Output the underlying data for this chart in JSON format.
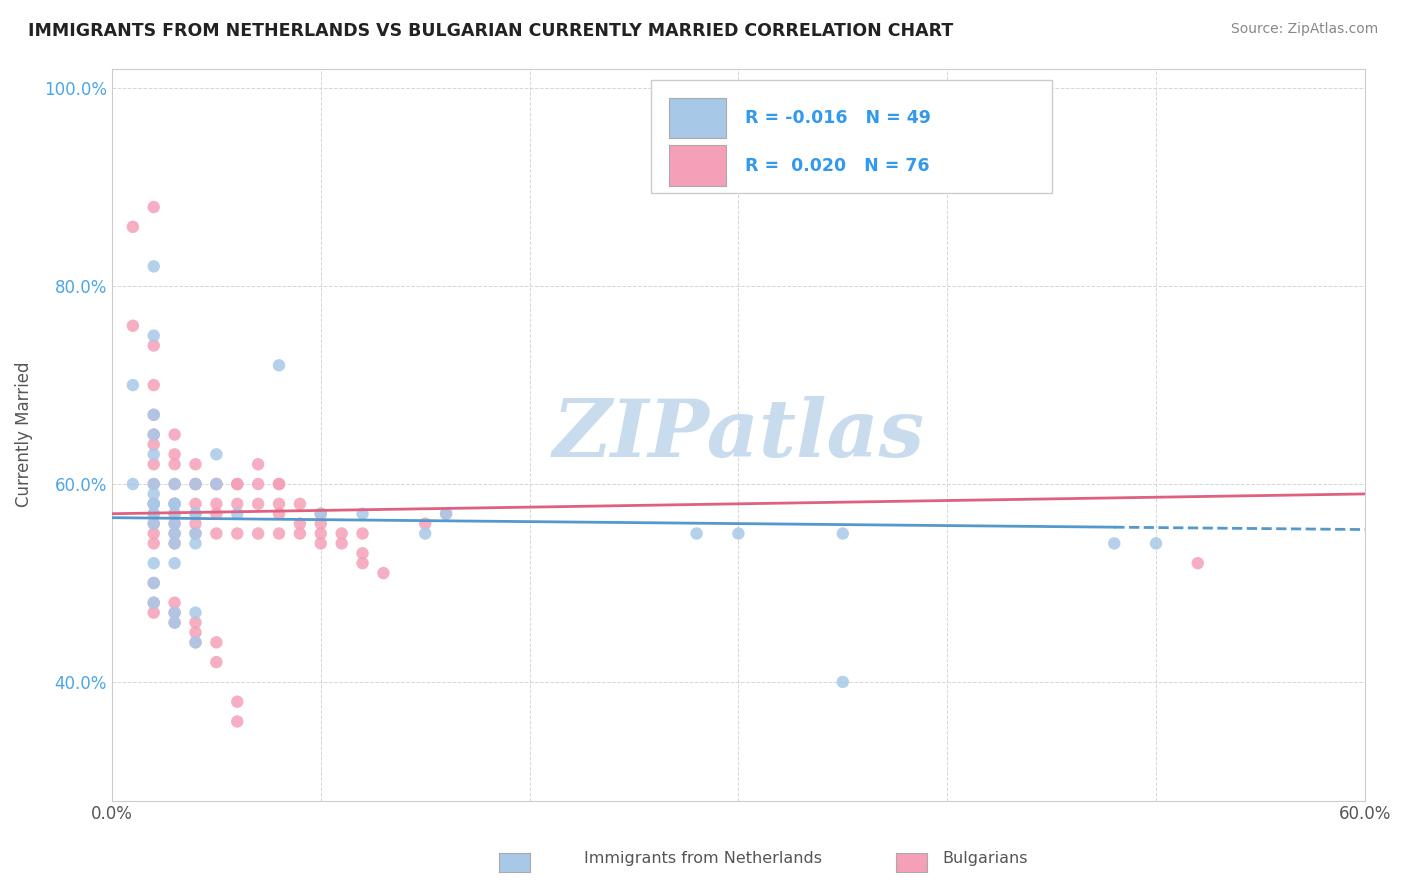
{
  "title": "IMMIGRANTS FROM NETHERLANDS VS BULGARIAN CURRENTLY MARRIED CORRELATION CHART",
  "source": "Source: ZipAtlas.com",
  "ylabel": "Currently Married",
  "x_min": 0.0,
  "x_max": 0.6,
  "y_min": 0.28,
  "y_max": 1.02,
  "x_ticks": [
    0.0,
    0.1,
    0.2,
    0.3,
    0.4,
    0.5,
    0.6
  ],
  "y_ticks": [
    0.4,
    0.6,
    0.8,
    1.0
  ],
  "netherlands_color": "#a8c8e8",
  "bulgarians_color": "#f4a0b8",
  "netherlands_line_color": "#5599cc",
  "bulgarians_line_color": "#e06080",
  "R_netherlands": -0.016,
  "N_netherlands": 49,
  "R_bulgarians": 0.02,
  "N_bulgarians": 76,
  "watermark": "ZIPatlas",
  "watermark_color": "#c8dced",
  "background_color": "#ffffff",
  "grid_color": "#cccccc",
  "title_color": "#222222",
  "tick_color": "#4da6e8",
  "legend_label_netherlands": "Immigrants from Netherlands",
  "legend_label_bulgarians": "Bulgarians",
  "netherlands_scatter_x": [
    0.02,
    0.02,
    0.01,
    0.02,
    0.02,
    0.02,
    0.01,
    0.02,
    0.02,
    0.02,
    0.03,
    0.02,
    0.03,
    0.03,
    0.03,
    0.04,
    0.04,
    0.05,
    0.05,
    0.06,
    0.08,
    0.02,
    0.02,
    0.02,
    0.03,
    0.03,
    0.03,
    0.03,
    0.04,
    0.04,
    0.04,
    0.03,
    0.1,
    0.12,
    0.15,
    0.16,
    0.02,
    0.02,
    0.02,
    0.03,
    0.03,
    0.04,
    0.04,
    0.28,
    0.3,
    0.35,
    0.35,
    0.48,
    0.5
  ],
  "netherlands_scatter_y": [
    0.82,
    0.75,
    0.7,
    0.67,
    0.65,
    0.63,
    0.6,
    0.6,
    0.59,
    0.58,
    0.6,
    0.58,
    0.58,
    0.57,
    0.58,
    0.6,
    0.57,
    0.63,
    0.6,
    0.57,
    0.72,
    0.57,
    0.57,
    0.56,
    0.58,
    0.56,
    0.55,
    0.54,
    0.57,
    0.55,
    0.54,
    0.52,
    0.57,
    0.57,
    0.55,
    0.57,
    0.52,
    0.5,
    0.48,
    0.47,
    0.46,
    0.47,
    0.44,
    0.55,
    0.55,
    0.55,
    0.4,
    0.54,
    0.54
  ],
  "bulgarians_scatter_x": [
    0.01,
    0.01,
    0.02,
    0.02,
    0.02,
    0.02,
    0.02,
    0.02,
    0.02,
    0.02,
    0.02,
    0.02,
    0.02,
    0.02,
    0.03,
    0.03,
    0.03,
    0.03,
    0.03,
    0.03,
    0.03,
    0.03,
    0.03,
    0.04,
    0.04,
    0.04,
    0.04,
    0.04,
    0.04,
    0.05,
    0.05,
    0.05,
    0.05,
    0.05,
    0.06,
    0.06,
    0.06,
    0.06,
    0.07,
    0.07,
    0.07,
    0.07,
    0.08,
    0.08,
    0.08,
    0.08,
    0.08,
    0.09,
    0.09,
    0.09,
    0.1,
    0.1,
    0.1,
    0.1,
    0.11,
    0.11,
    0.12,
    0.12,
    0.12,
    0.13,
    0.15,
    0.16,
    0.02,
    0.02,
    0.02,
    0.03,
    0.03,
    0.03,
    0.04,
    0.04,
    0.04,
    0.05,
    0.05,
    0.06,
    0.52,
    0.06
  ],
  "bulgarians_scatter_y": [
    0.86,
    0.76,
    0.88,
    0.74,
    0.7,
    0.67,
    0.65,
    0.64,
    0.62,
    0.6,
    0.58,
    0.56,
    0.55,
    0.54,
    0.65,
    0.63,
    0.62,
    0.6,
    0.58,
    0.57,
    0.56,
    0.55,
    0.54,
    0.62,
    0.6,
    0.6,
    0.58,
    0.56,
    0.55,
    0.6,
    0.6,
    0.58,
    0.57,
    0.55,
    0.6,
    0.6,
    0.58,
    0.55,
    0.62,
    0.6,
    0.58,
    0.55,
    0.6,
    0.6,
    0.58,
    0.57,
    0.55,
    0.58,
    0.56,
    0.55,
    0.57,
    0.56,
    0.55,
    0.54,
    0.55,
    0.54,
    0.55,
    0.53,
    0.52,
    0.51,
    0.56,
    0.57,
    0.5,
    0.48,
    0.47,
    0.48,
    0.47,
    0.46,
    0.46,
    0.45,
    0.44,
    0.44,
    0.42,
    0.38,
    0.52,
    0.36
  ],
  "nl_trend_start": 0.566,
  "nl_trend_end": 0.554,
  "bg_trend_start": 0.57,
  "bg_trend_end": 0.59
}
